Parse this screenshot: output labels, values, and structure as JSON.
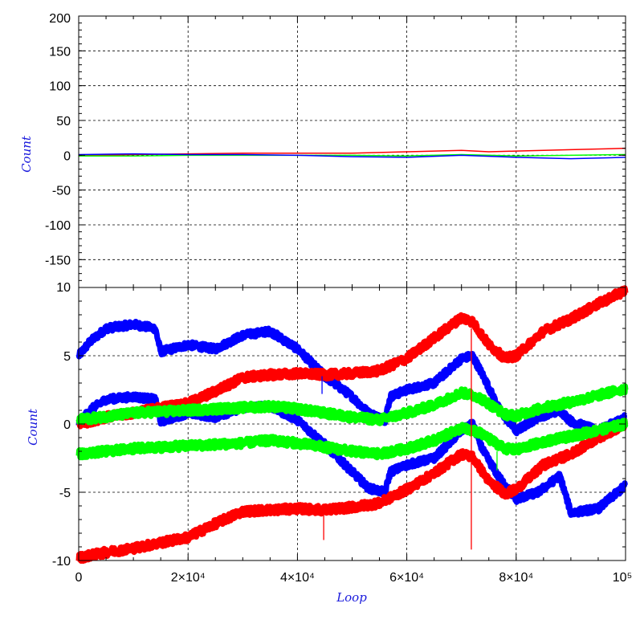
{
  "chart_data": [
    {
      "type": "line",
      "panel": "top",
      "title": "",
      "xlabel": "",
      "ylabel": "Count",
      "xlim": [
        0,
        100000
      ],
      "ylim": [
        -190,
        200
      ],
      "yticks": [
        200,
        150,
        100,
        50,
        0,
        -50,
        -100,
        -150
      ],
      "ytick_labels": [
        "200",
        "150",
        "100",
        "50",
        "0",
        "-50",
        "-100",
        "-150"
      ],
      "grid": true,
      "series": [
        {
          "color": "#ff0000",
          "x": [
            0,
            10000,
            20000,
            30000,
            40000,
            50000,
            60000,
            70000,
            75000,
            80000,
            90000,
            100000
          ],
          "y": [
            0,
            1,
            2,
            3,
            3,
            3,
            5,
            7,
            5,
            6,
            8,
            10
          ]
        },
        {
          "color": "#00ff00",
          "x": [
            0,
            10000,
            20000,
            30000,
            40000,
            50000,
            60000,
            70000,
            80000,
            90000,
            100000
          ],
          "y": [
            -1,
            -1,
            0,
            0,
            0,
            0,
            -1,
            1,
            -1,
            0,
            1
          ]
        },
        {
          "color": "#0000ff",
          "x": [
            0,
            10000,
            20000,
            30000,
            40000,
            50000,
            60000,
            70000,
            80000,
            90000,
            100000
          ],
          "y": [
            1,
            2,
            1,
            1,
            0,
            -2,
            -3,
            0,
            -3,
            -5,
            -3
          ]
        }
      ]
    },
    {
      "type": "line",
      "panel": "bottom",
      "title": "",
      "xlabel": "Loop",
      "ylabel": "Count",
      "xlim": [
        0,
        100000
      ],
      "ylim": [
        -10,
        10
      ],
      "yticks": [
        10,
        5,
        0,
        -5,
        -10
      ],
      "ytick_labels": [
        "10",
        "5",
        "0",
        "-5",
        "-10"
      ],
      "xticks": [
        0,
        20000,
        40000,
        60000,
        80000,
        100000
      ],
      "xtick_labels": [
        "0",
        "2×10⁴",
        "4×10⁴",
        "6×10⁴",
        "8×10⁴",
        "10⁵"
      ],
      "grid": true,
      "series": [
        {
          "color": "#0000ff",
          "noise": 0.25,
          "x": [
            0,
            2000,
            5000,
            10000,
            14000,
            15000,
            20000,
            25000,
            30000,
            35000,
            40000,
            45000,
            50000,
            53000,
            56000,
            57000,
            60000,
            65000,
            70000,
            72000,
            74000,
            77000,
            80000,
            84000,
            88000,
            90000,
            95000,
            100000
          ],
          "y": [
            5,
            6,
            7,
            7.3,
            7,
            5.3,
            5.8,
            5.5,
            6.5,
            6.8,
            5.5,
            3.5,
            2,
            0.8,
            0.3,
            2,
            2.5,
            3,
            4.8,
            5,
            3.5,
            1,
            -0.5,
            0.5,
            1,
            0.2,
            -0.5,
            0.5
          ]
        },
        {
          "color": "#0000ff",
          "noise": 0.25,
          "x": [
            0,
            2000,
            5000,
            10000,
            14000,
            15000,
            20000,
            25000,
            30000,
            35000,
            40000,
            45000,
            50000,
            53000,
            56000,
            57000,
            60000,
            65000,
            70000,
            72000,
            74000,
            77000,
            80000,
            84000,
            88000,
            90000,
            95000,
            100000
          ],
          "y": [
            0,
            1,
            1.8,
            2,
            1.8,
            0.2,
            0.8,
            0.5,
            1.2,
            1.3,
            0.3,
            -1.5,
            -3.5,
            -4.7,
            -5,
            -3.5,
            -3,
            -2.5,
            -0.5,
            0,
            -2,
            -4,
            -5.5,
            -5,
            -3.8,
            -6.5,
            -6.2,
            -4.5
          ]
        },
        {
          "color": "#ff0000",
          "noise": 0.3,
          "x": [
            0,
            5000,
            10000,
            15000,
            20000,
            25000,
            30000,
            35000,
            40000,
            45000,
            50000,
            55000,
            60000,
            65000,
            70000,
            72000,
            75000,
            78000,
            80000,
            85000,
            90000,
            95000,
            100000
          ],
          "y": [
            0,
            0.5,
            0.8,
            1.2,
            1.5,
            2.4,
            3.4,
            3.6,
            3.7,
            3.6,
            3.7,
            3.9,
            4.8,
            6.3,
            7.8,
            7.5,
            5.8,
            4.8,
            5,
            6.8,
            7.7,
            8.8,
            9.8
          ]
        },
        {
          "color": "#ff0000",
          "noise": 0.3,
          "x": [
            0,
            5000,
            10000,
            15000,
            20000,
            25000,
            30000,
            35000,
            40000,
            45000,
            50000,
            55000,
            60000,
            65000,
            70000,
            72000,
            75000,
            78000,
            80000,
            85000,
            90000,
            95000,
            100000
          ],
          "y": [
            -9.8,
            -9.4,
            -9.1,
            -8.7,
            -8.3,
            -7.3,
            -6.4,
            -6.3,
            -6.2,
            -6.3,
            -6.1,
            -5.8,
            -4.8,
            -3.6,
            -2.2,
            -2.4,
            -4.2,
            -5.1,
            -4.8,
            -3,
            -2.2,
            -1,
            0
          ]
        },
        {
          "color": "#00ff00",
          "noise": 0.3,
          "x": [
            0,
            10000,
            20000,
            30000,
            35000,
            40000,
            50000,
            55000,
            60000,
            65000,
            70000,
            73000,
            78000,
            80000,
            85000,
            90000,
            100000
          ],
          "y": [
            0.3,
            0.8,
            1,
            1.2,
            1.3,
            1.1,
            0.5,
            0.3,
            0.8,
            1.4,
            2.3,
            2,
            0.7,
            0.6,
            1.2,
            1.6,
            2.6
          ]
        },
        {
          "color": "#00ff00",
          "noise": 0.3,
          "x": [
            0,
            10000,
            20000,
            30000,
            35000,
            40000,
            50000,
            55000,
            60000,
            65000,
            70000,
            73000,
            78000,
            80000,
            85000,
            90000,
            100000
          ],
          "y": [
            -2.2,
            -1.8,
            -1.6,
            -1.4,
            -1.2,
            -1.4,
            -2,
            -2.2,
            -1.8,
            -1.2,
            -0.3,
            -0.6,
            -1.8,
            -1.9,
            -1.3,
            -0.9,
            0
          ]
        }
      ],
      "spikes": [
        {
          "color": "#ff0000",
          "x": 71800,
          "y_from": 7,
          "y_to": -9.2
        },
        {
          "color": "#ff0000",
          "x": 44800,
          "y_from": -6.3,
          "y_to": -8.5
        },
        {
          "color": "#0000ff",
          "x": 44500,
          "y_from": 3.5,
          "y_to": 2.2
        },
        {
          "color": "#00ff00",
          "x": 76500,
          "y_from": -2,
          "y_to": -3.4
        }
      ]
    }
  ]
}
